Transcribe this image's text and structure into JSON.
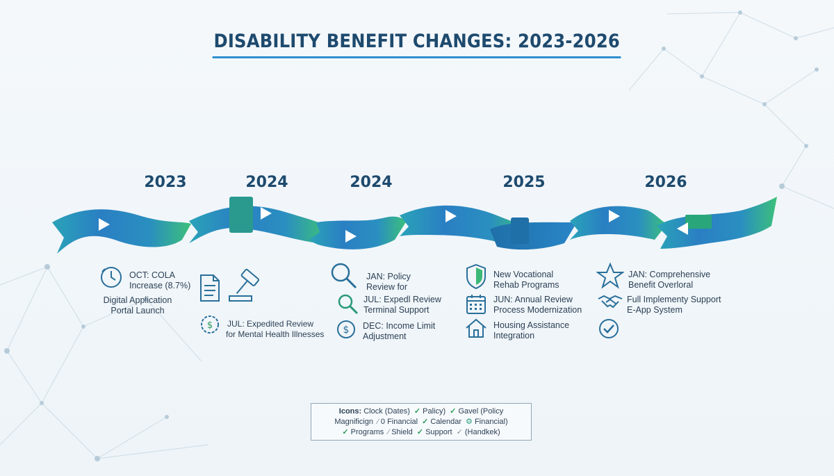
{
  "title": "DISABILITY BENEFIT CHANGES: 2023-2026",
  "years": [
    "2023",
    "2024",
    "2024",
    "2025",
    "2026"
  ],
  "entries": {
    "c1_oct": "OCT: COLA",
    "c1_oct2": "Increase (8.7%)",
    "c1_portal1": "Digital Application",
    "c1_portal2": "Portal Launch",
    "c2_jul1": "JUL: Expedited Review",
    "c2_jul2": "for Mental Health Illnesses",
    "c3_jan1": "JAN: Policy",
    "c3_jan2": "Review for",
    "c3_jul1": "JUL: Expedl Review",
    "c3_jul2": "Terminal Support",
    "c3_dec1": "DEC: Income Limit",
    "c3_dec2": "Adjustment",
    "c4_voc1": "New Vocational",
    "c4_voc2": "Rehab Programs",
    "c4_jun1": "JUN: Annual Review",
    "c4_jun2": "Process Modernization",
    "c4_house1": "Housing Assistance",
    "c4_house2": "Integration",
    "c5_jan1": "JAN: Comprehensive",
    "c5_jan2": "Benefit Overloral",
    "c5_full1": "Full Implementy Support",
    "c5_full2": "E-App System"
  },
  "legend": {
    "label": "Icons:",
    "r1_a": "Clock (Dates)",
    "r1_b": "Palicy)",
    "r1_c": "Gavel (Policy",
    "r2_a": "Magnificign",
    "r2_b": "0 Financial",
    "r2_c": "Calendar",
    "r2_d": "Financial)",
    "r3_a": "Programs",
    "r3_b": "Shield",
    "r3_c": "Support",
    "r3_d": "(Handkek)"
  },
  "colors": {
    "ribbon_blue": "#2a7fc3",
    "ribbon_teal": "#23a6a6",
    "ribbon_green": "#3cc07a",
    "icon_stroke": "#2a6f9a",
    "accent_underline": "#2f8fd0"
  },
  "icons": [
    "clock-icon",
    "document-icon",
    "gavel-icon",
    "dollar-coin-icon",
    "magnifier-icon",
    "shield-icon",
    "calendar-icon",
    "house-icon",
    "star-icon",
    "handshake-icon",
    "check-circle-icon"
  ]
}
